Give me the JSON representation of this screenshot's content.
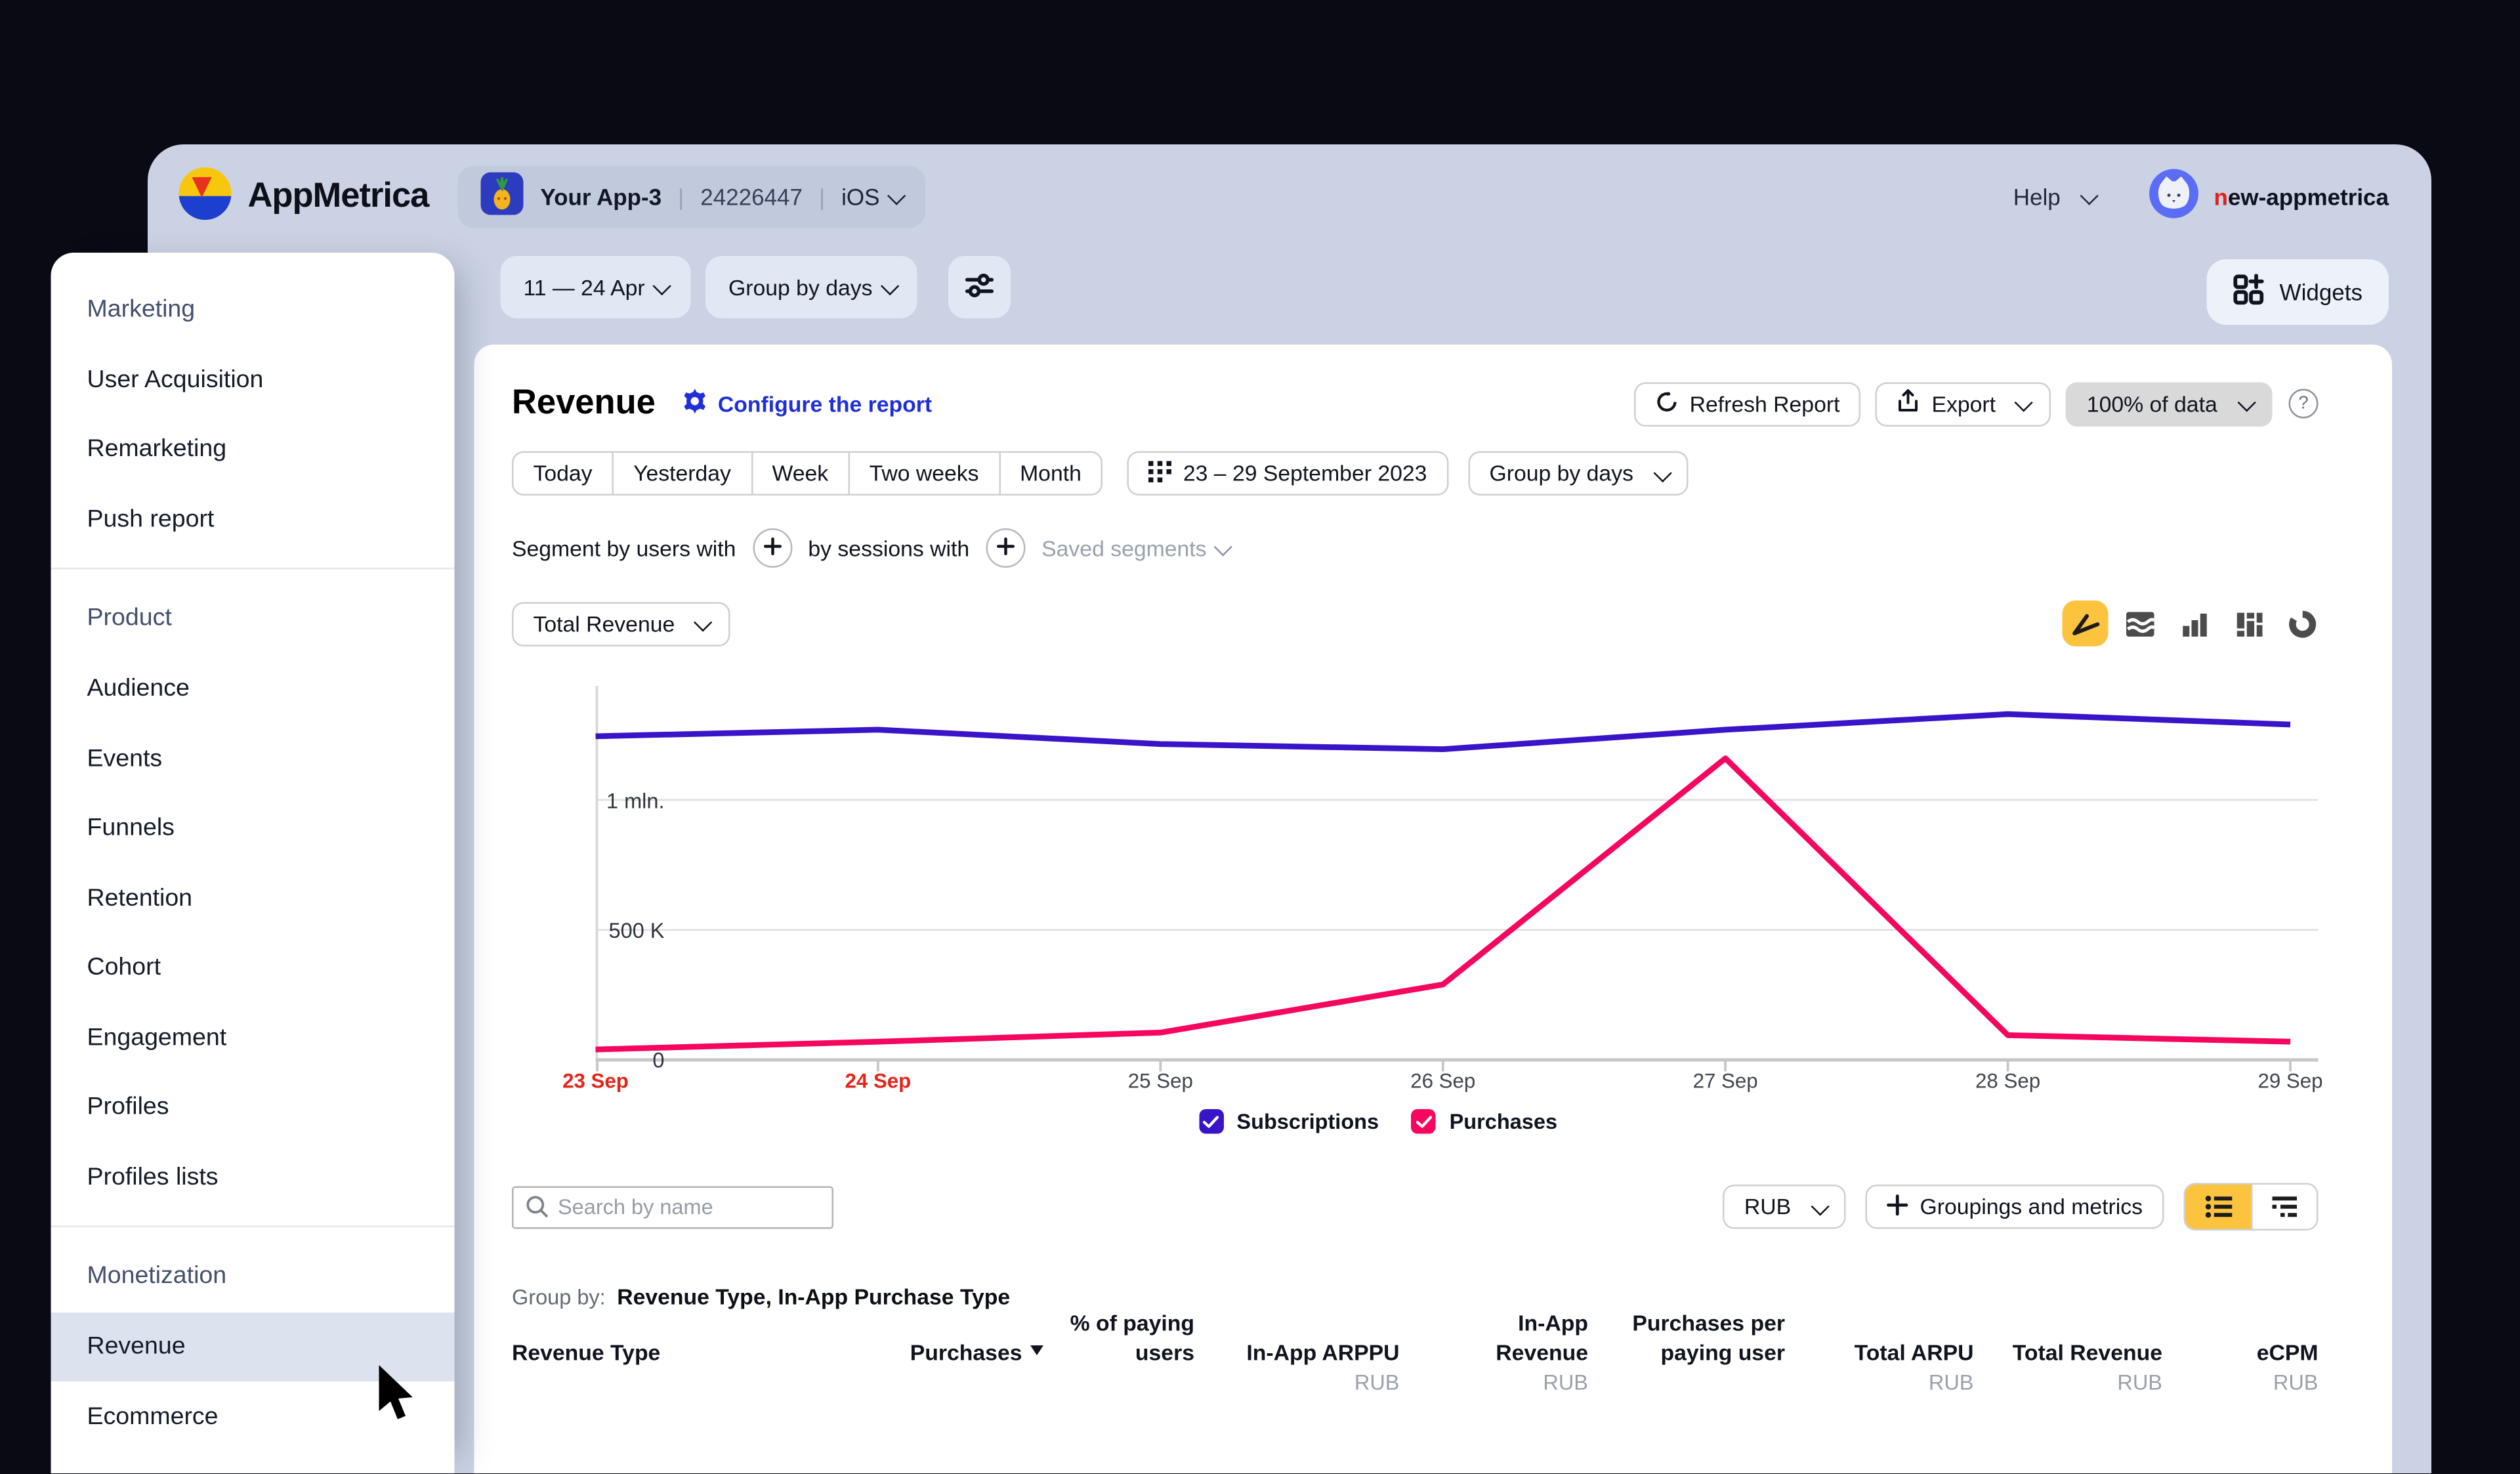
{
  "header": {
    "brand": "AppMetrica",
    "app": {
      "name": "Your App-3",
      "id": "24226447",
      "platform": "iOS"
    },
    "help_label": "Help",
    "username": "new-appmetrica"
  },
  "toolbar": {
    "date_range": "11 — 24 Apr",
    "group_by": "Group by days",
    "widgets_label": "Widgets"
  },
  "sidebar": {
    "sections": [
      {
        "title": "Marketing",
        "items": [
          "User Acquisition",
          "Remarketing",
          "Push report"
        ]
      },
      {
        "title": "Product",
        "items": [
          "Audience",
          "Events",
          "Funnels",
          "Retention",
          "Cohort",
          "Engagement",
          "Profiles",
          "Profiles lists"
        ]
      },
      {
        "title": "Monetization",
        "items": [
          "Revenue",
          "Ecommerce"
        ],
        "selected": "Revenue"
      }
    ]
  },
  "report": {
    "title": "Revenue",
    "configure_label": "Configure the report",
    "refresh_label": "Refresh Report",
    "export_label": "Export",
    "data_sampling": "100% of data",
    "period_tabs": [
      "Today",
      "Yesterday",
      "Week",
      "Two weeks",
      "Month"
    ],
    "date_picker": "23 – 29 September 2023",
    "group_by_button": "Group by days",
    "segment": {
      "users_label": "Segment by users with",
      "sessions_label": "by sessions with",
      "saved_label": "Saved segments"
    },
    "metric_selector": "Total Revenue"
  },
  "chart_data": {
    "type": "line",
    "x": [
      "23 Sep",
      "24 Sep",
      "25 Sep",
      "26 Sep",
      "27 Sep",
      "28 Sep",
      "29 Sep"
    ],
    "series": [
      {
        "name": "Subscriptions",
        "color": "#3a14c8",
        "values": [
          1245000,
          1270000,
          1215000,
          1195000,
          1270000,
          1330000,
          1290000
        ]
      },
      {
        "name": "Purchases",
        "color": "#f5065f",
        "values": [
          40000,
          70000,
          105000,
          290000,
          1160000,
          95000,
          70000
        ]
      }
    ],
    "yticks": [
      {
        "value": 0,
        "label": "0"
      },
      {
        "value": 500000,
        "label": "500 K"
      },
      {
        "value": 1000000,
        "label": "1 mln."
      }
    ],
    "ylim": [
      0,
      1420000
    ],
    "grid": true,
    "legend_position": "bottom",
    "highlighted_x": [
      "23 Sep",
      "24 Sep"
    ]
  },
  "table_controls": {
    "search_placeholder": "Search by name",
    "currency": "RUB",
    "groupings_label": "Groupings and metrics"
  },
  "table": {
    "group_by_label": "Group by:",
    "group_by_value": "Revenue Type, In-App Purchase Type",
    "columns": [
      {
        "label": "Revenue Type",
        "sub": "",
        "align": "left",
        "sorted": false
      },
      {
        "label": "Purchases",
        "sub": "",
        "align": "right",
        "sorted": true
      },
      {
        "label": "% of paying users",
        "sub": "",
        "align": "right",
        "sorted": false
      },
      {
        "label": "In-App ARPPU",
        "sub": "RUB",
        "align": "right",
        "sorted": false
      },
      {
        "label": "In-App Revenue",
        "sub": "RUB",
        "align": "right",
        "sorted": false
      },
      {
        "label": "Purchases per paying user",
        "sub": "",
        "align": "right",
        "sorted": false
      },
      {
        "label": "Total ARPU",
        "sub": "RUB",
        "align": "right",
        "sorted": false
      },
      {
        "label": "Total Revenue",
        "sub": "RUB",
        "align": "right",
        "sorted": false
      },
      {
        "label": "eCPM",
        "sub": "RUB",
        "align": "right",
        "sorted": false
      }
    ]
  },
  "colors": {
    "page_bg": "#0a0a15",
    "window_bg": "#cad2e3",
    "accent_blue": "#1e2fd8",
    "selected_yellow": "#fcc43e",
    "series_subscriptions": "#3a14c8",
    "series_purchases": "#f5065f",
    "axis_highlight_red": "#e3251b",
    "sidebar_selected_bg": "#dce2ee"
  }
}
